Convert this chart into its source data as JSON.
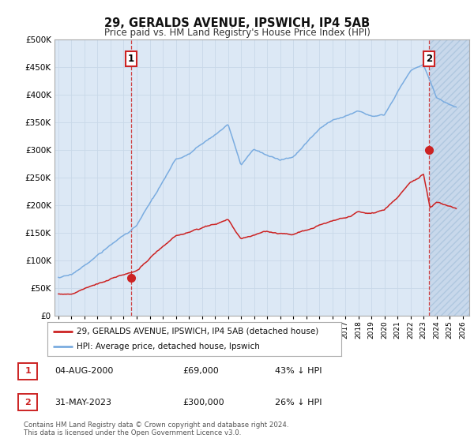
{
  "title": "29, GERALDS AVENUE, IPSWICH, IP4 5AB",
  "subtitle": "Price paid vs. HM Land Registry's House Price Index (HPI)",
  "ytick_values": [
    0,
    50000,
    100000,
    150000,
    200000,
    250000,
    300000,
    350000,
    400000,
    450000,
    500000
  ],
  "ylim": [
    0,
    500000
  ],
  "xlim_start": 1994.7,
  "xlim_end": 2026.5,
  "hpi_color": "#7aace0",
  "price_color": "#cc2222",
  "marker_color": "#cc2222",
  "vline_color": "#cc2222",
  "grid_color": "#c8d8e8",
  "bg_color": "#dce8f5",
  "hatch_bg": "#c8d8eb",
  "sale1_x": 2000.58,
  "sale1_y": 69000,
  "sale2_x": 2023.42,
  "sale2_y": 300000,
  "legend_line1": "29, GERALDS AVENUE, IPSWICH, IP4 5AB (detached house)",
  "legend_line2": "HPI: Average price, detached house, Ipswich",
  "footnote": "Contains HM Land Registry data © Crown copyright and database right 2024.\nThis data is licensed under the Open Government Licence v3.0."
}
